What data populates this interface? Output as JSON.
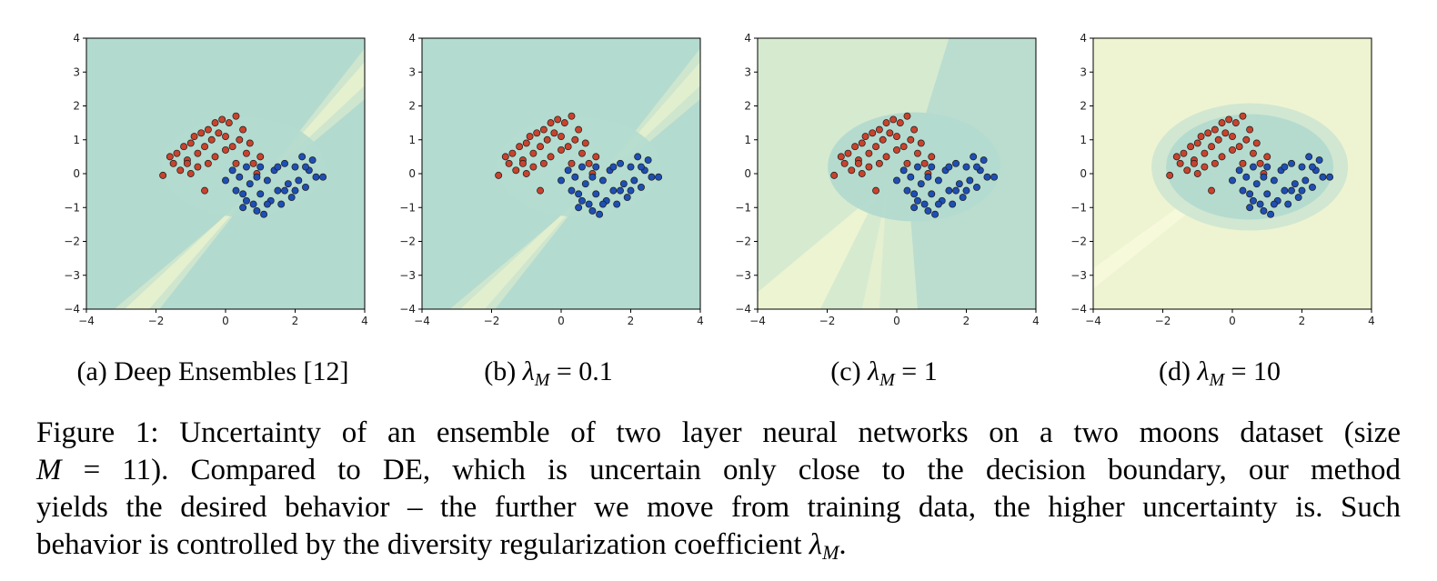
{
  "chart_data": [
    {
      "type": "scatter",
      "panel": "a",
      "xlim": [
        -4,
        4
      ],
      "ylim": [
        -4,
        4
      ],
      "xticks": [
        "−4",
        "−2",
        "0",
        "2",
        "4"
      ],
      "yticks": [
        "4",
        "3",
        "2",
        "1",
        "0",
        "−1",
        "−2",
        "−3",
        "−4"
      ],
      "background": "#b3dacf",
      "uncertainty_band": "diagonal",
      "series": [
        {
          "color": "#c8432d",
          "points": [
            [
              -1.8,
              -0.05
            ],
            [
              -1.6,
              0.5
            ],
            [
              -1.5,
              0.3
            ],
            [
              -1.4,
              0.6
            ],
            [
              -1.3,
              0.1
            ],
            [
              -1.2,
              0.8
            ],
            [
              -1.1,
              0.4
            ],
            [
              -1.0,
              0.9
            ],
            [
              -1.0,
              0.0
            ],
            [
              -0.9,
              1.1
            ],
            [
              -0.8,
              0.6
            ],
            [
              -0.8,
              0.2
            ],
            [
              -0.7,
              1.2
            ],
            [
              -0.6,
              0.8
            ],
            [
              -0.6,
              -0.5
            ],
            [
              -0.5,
              1.3
            ],
            [
              -0.4,
              1.0
            ],
            [
              -0.3,
              1.5
            ],
            [
              -0.3,
              0.5
            ],
            [
              -0.2,
              1.2
            ],
            [
              -0.1,
              1.6
            ],
            [
              0.0,
              1.1
            ],
            [
              0.1,
              1.5
            ],
            [
              0.2,
              0.8
            ],
            [
              0.3,
              1.7
            ],
            [
              0.4,
              1.0
            ],
            [
              0.5,
              1.3
            ],
            [
              0.6,
              0.6
            ],
            [
              0.7,
              0.9
            ],
            [
              0.8,
              0.3
            ],
            [
              1.0,
              0.5
            ],
            [
              0.9,
              0.0
            ],
            [
              -1.1,
              0.3
            ],
            [
              -0.5,
              0.3
            ],
            [
              0.0,
              0.7
            ],
            [
              0.3,
              0.3
            ]
          ]
        },
        {
          "color": "#1f4fb4",
          "points": [
            [
              0.0,
              -0.2
            ],
            [
              0.2,
              0.1
            ],
            [
              0.3,
              -0.5
            ],
            [
              0.4,
              -0.1
            ],
            [
              0.5,
              -0.6
            ],
            [
              0.6,
              0.2
            ],
            [
              0.7,
              -0.3
            ],
            [
              0.8,
              -0.9
            ],
            [
              0.9,
              -0.1
            ],
            [
              1.0,
              -0.6
            ],
            [
              1.1,
              -1.2
            ],
            [
              1.2,
              -0.2
            ],
            [
              1.3,
              -0.8
            ],
            [
              1.4,
              0.1
            ],
            [
              1.5,
              -0.5
            ],
            [
              1.6,
              -0.9
            ],
            [
              1.7,
              0.3
            ],
            [
              1.8,
              -0.3
            ],
            [
              1.9,
              -0.7
            ],
            [
              2.0,
              0.2
            ],
            [
              2.1,
              -0.2
            ],
            [
              2.2,
              0.5
            ],
            [
              2.3,
              -0.4
            ],
            [
              2.4,
              0.1
            ],
            [
              2.5,
              0.4
            ],
            [
              2.6,
              -0.1
            ],
            [
              2.8,
              -0.1
            ],
            [
              0.5,
              -1.0
            ],
            [
              0.9,
              -1.1
            ],
            [
              1.2,
              -0.9
            ],
            [
              1.7,
              -0.5
            ],
            [
              2.0,
              -0.5
            ],
            [
              1.5,
              0.2
            ],
            [
              1.0,
              0.2
            ],
            [
              0.6,
              -0.8
            ],
            [
              2.3,
              0.2
            ]
          ]
        }
      ]
    },
    {
      "type": "scatter",
      "panel": "b",
      "xlim": [
        -4,
        4
      ],
      "ylim": [
        -4,
        4
      ],
      "xticks": [
        "−4",
        "−2",
        "0",
        "2",
        "4"
      ],
      "yticks": [
        "4",
        "3",
        "2",
        "1",
        "0",
        "−1",
        "−2",
        "−3",
        "−4"
      ],
      "background": "#b4dbcf",
      "uncertainty_band": "diagonal",
      "series": [
        {
          "color": "#c8432d",
          "points": "same as panel a"
        },
        {
          "color": "#1f4fb4",
          "points": "same as panel a"
        }
      ]
    },
    {
      "type": "scatter",
      "panel": "c",
      "xlim": [
        -4,
        4
      ],
      "ylim": [
        -4,
        4
      ],
      "xticks": [
        "−4",
        "−2",
        "0",
        "2",
        "4"
      ],
      "yticks": [
        "4",
        "3",
        "2",
        "1",
        "0",
        "−1",
        "−2",
        "−3",
        "−4"
      ],
      "background": "#d6ead0",
      "uncertainty_band": "mixed",
      "series": [
        {
          "color": "#c8432d",
          "points": "same as panel a"
        },
        {
          "color": "#1f4fb4",
          "points": "same as panel a"
        }
      ]
    },
    {
      "type": "scatter",
      "panel": "d",
      "xlim": [
        -4,
        4
      ],
      "ylim": [
        -4,
        4
      ],
      "xticks": [
        "−4",
        "−2",
        "0",
        "2",
        "4"
      ],
      "yticks": [
        "4",
        "3",
        "2",
        "1",
        "0",
        "−1",
        "−2",
        "−3",
        "−4"
      ],
      "background": "#eef4d2",
      "uncertainty_band": "far-from-data",
      "series": [
        {
          "color": "#c8432d",
          "points": "same as panel a"
        },
        {
          "color": "#1f4fb4",
          "points": "same as panel a"
        }
      ]
    }
  ],
  "subcaptions": {
    "a": "(a) Deep Ensembles [12]",
    "b_prefix": "(b) ",
    "c_prefix": "(c) ",
    "d_prefix": "(d) ",
    "lambda": "λ",
    "sub": "M",
    "b_value": " = 0.1",
    "c_value": " = 1",
    "d_value": " = 10"
  },
  "caption": {
    "line1": "Figure 1: Uncertainty of an ensemble of two layer neural networks on a two moons dataset (size",
    "line2_var": "M",
    "line2_rest": " = 11). Compared to DE, which is uncertain only close to the decision boundary, our method",
    "line3": "yields the desired behavior – the further we move from training data, the higher uncertainty is. Such",
    "line4": "behavior is controlled by the diversity regularization coefficient ",
    "line4_lambda": "λ",
    "line4_sub": "M",
    "line4_end": "."
  }
}
